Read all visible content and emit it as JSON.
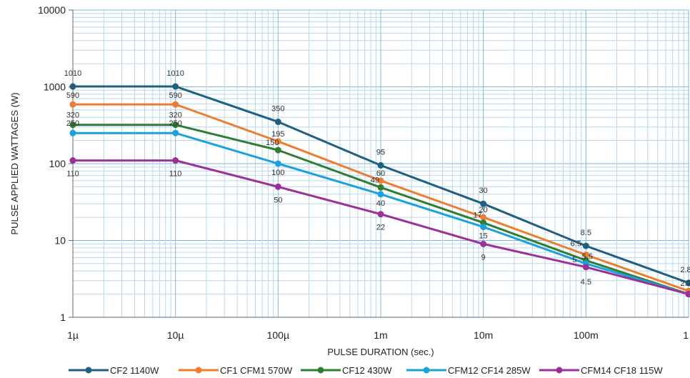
{
  "chart_data": {
    "type": "line",
    "xlabel": "PULSE DURATION (sec.)",
    "ylabel": "PULSE APPLIED WATTAGES (W)",
    "x_scale": "log",
    "y_scale": "log",
    "xlim": [
      1e-06,
      1
    ],
    "ylim": [
      1,
      10000
    ],
    "grid": true,
    "legend_position": "bottom",
    "x_ticks": [
      {
        "value": 1e-06,
        "label": "1µ"
      },
      {
        "value": 1e-05,
        "label": "10µ"
      },
      {
        "value": 0.0001,
        "label": "100µ"
      },
      {
        "value": 0.001,
        "label": "1m"
      },
      {
        "value": 0.01,
        "label": "10m"
      },
      {
        "value": 0.1,
        "label": "100m"
      },
      {
        "value": 1,
        "label": "1"
      }
    ],
    "y_ticks": [
      {
        "value": 1,
        "label": "1"
      },
      {
        "value": 10,
        "label": "10"
      },
      {
        "value": 100,
        "label": "100"
      },
      {
        "value": 1000,
        "label": "1000"
      },
      {
        "value": 10000,
        "label": "10000"
      }
    ],
    "series": [
      {
        "name": "CF2 1140W",
        "color": "#1f5f80",
        "points": [
          {
            "x": 1e-06,
            "y": 1010,
            "label": "1010"
          },
          {
            "x": 1e-05,
            "y": 1010,
            "label": "1010"
          },
          {
            "x": 0.0001,
            "y": 350,
            "label": "350"
          },
          {
            "x": 0.001,
            "y": 95,
            "label": "95"
          },
          {
            "x": 0.01,
            "y": 30,
            "label": "30"
          },
          {
            "x": 0.1,
            "y": 8.5,
            "label": "8.5"
          },
          {
            "x": 1,
            "y": 2.8,
            "label": "2.8"
          }
        ]
      },
      {
        "name": "CF1 CFM1 570W",
        "color": "#ed7d31",
        "points": [
          {
            "x": 1e-06,
            "y": 590,
            "label": "590"
          },
          {
            "x": 1e-05,
            "y": 590,
            "label": "590"
          },
          {
            "x": 0.0001,
            "y": 195,
            "label": "195"
          },
          {
            "x": 0.001,
            "y": 60,
            "label": "60"
          },
          {
            "x": 0.01,
            "y": 20,
            "label": "20"
          },
          {
            "x": 0.1,
            "y": 6.5,
            "label": "6.5"
          },
          {
            "x": 1,
            "y": 2.2,
            "label": "2.2"
          }
        ]
      },
      {
        "name": "CF12 430W",
        "color": "#2e7d32",
        "points": [
          {
            "x": 1e-06,
            "y": 320,
            "label": "320"
          },
          {
            "x": 1e-05,
            "y": 320,
            "label": "320"
          },
          {
            "x": 0.0001,
            "y": 150,
            "label": "150"
          },
          {
            "x": 0.001,
            "y": 49,
            "label": "49"
          },
          {
            "x": 0.01,
            "y": 17,
            "label": "17"
          },
          {
            "x": 0.1,
            "y": 5.5,
            "label": "5.5"
          },
          {
            "x": 1,
            "y": 2,
            "label": ""
          }
        ]
      },
      {
        "name": "CFM12 CF14 285W",
        "color": "#1ba1dc",
        "points": [
          {
            "x": 1e-06,
            "y": 250,
            "label": "250"
          },
          {
            "x": 1e-05,
            "y": 250,
            "label": "250"
          },
          {
            "x": 0.0001,
            "y": 100,
            "label": "100"
          },
          {
            "x": 0.001,
            "y": 40,
            "label": "40"
          },
          {
            "x": 0.01,
            "y": 15,
            "label": "15"
          },
          {
            "x": 0.1,
            "y": 5,
            "label": "5"
          },
          {
            "x": 1,
            "y": 2,
            "label": ""
          }
        ]
      },
      {
        "name": "CFM14 CF18 115W",
        "color": "#9c3096",
        "points": [
          {
            "x": 1e-06,
            "y": 110,
            "label": "110"
          },
          {
            "x": 1e-05,
            "y": 110,
            "label": "110"
          },
          {
            "x": 0.0001,
            "y": 50,
            "label": "50"
          },
          {
            "x": 0.001,
            "y": 22,
            "label": "22"
          },
          {
            "x": 0.01,
            "y": 9,
            "label": "9"
          },
          {
            "x": 0.1,
            "y": 4.5,
            "label": "4.5"
          },
          {
            "x": 1,
            "y": 2,
            "label": ""
          }
        ]
      }
    ]
  }
}
